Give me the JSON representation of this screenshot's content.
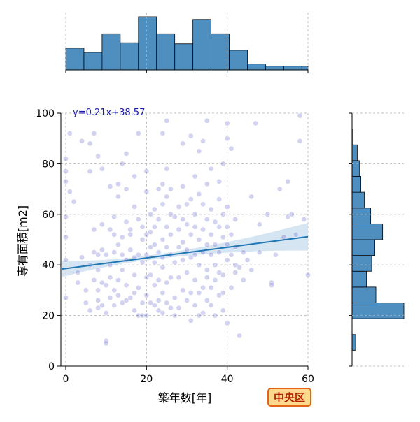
{
  "chart_data": {
    "type": "scatter",
    "xlabel": "築年数[年]",
    "ylabel": "専有面積[m2]",
    "xlim": [
      -1,
      60
    ],
    "ylim": [
      0,
      100
    ],
    "x_ticks": [
      0,
      20,
      40,
      60
    ],
    "y_ticks": [
      0,
      20,
      40,
      60,
      80,
      100
    ],
    "grid": true,
    "regression": {
      "equation": "y=0.21x+38.57",
      "slope": 0.21,
      "intercept": 38.57,
      "x_range": [
        -1,
        60
      ],
      "ci_halfwidth_at_ends": [
        3.2,
        5.5
      ],
      "ci_halfwidth_mid": 0.9,
      "color": "#1f77b4",
      "band_color": "#cfe0f0"
    },
    "badge": "中央区",
    "colors": {
      "point": "#4b4bc8",
      "hist": "#4f8fc0",
      "badge_bg": "#fcd98c",
      "badge_border": "#e2641a",
      "badge_text": "#b22200",
      "label_blue": "#1a1aa8"
    },
    "top_histogram": {
      "bin_edges": [
        0,
        4.5,
        9,
        13.5,
        18,
        22.5,
        27,
        31.5,
        36,
        40.5,
        45,
        49.5,
        54,
        58.5,
        60
      ],
      "relative_heights": [
        0.41,
        0.33,
        0.68,
        0.51,
        1.0,
        0.68,
        0.49,
        0.95,
        0.68,
        0.37,
        0.11,
        0.07,
        0.07,
        0.07
      ]
    },
    "right_histogram": {
      "bin_edges": [
        0,
        6.25,
        12.5,
        18.75,
        25,
        31.25,
        37.5,
        43.75,
        50,
        56.25,
        62.5,
        68.75,
        75,
        81.25,
        87.5,
        93.75,
        100
      ],
      "relative_widths": [
        0.0,
        0.07,
        0.0,
        1.0,
        0.46,
        0.28,
        0.38,
        0.44,
        0.59,
        0.36,
        0.24,
        0.17,
        0.14,
        0.1,
        0.02,
        0.0
      ]
    },
    "points": [
      [
        0,
        27
      ],
      [
        0,
        42
      ],
      [
        0,
        51
      ],
      [
        0,
        59
      ],
      [
        0,
        73
      ],
      [
        0,
        77
      ],
      [
        0,
        82
      ],
      [
        1,
        69
      ],
      [
        1,
        92
      ],
      [
        2,
        65
      ],
      [
        3,
        33
      ],
      [
        3,
        37
      ],
      [
        4,
        89
      ],
      [
        4,
        43
      ],
      [
        5,
        30
      ],
      [
        5,
        25
      ],
      [
        6,
        88
      ],
      [
        6,
        77
      ],
      [
        6,
        40
      ],
      [
        6,
        22
      ],
      [
        7,
        92
      ],
      [
        7,
        54
      ],
      [
        7,
        45
      ],
      [
        7,
        34
      ],
      [
        8,
        23
      ],
      [
        8,
        83
      ],
      [
        8,
        44
      ],
      [
        8,
        38
      ],
      [
        8,
        30
      ],
      [
        8,
        26
      ],
      [
        9,
        33
      ],
      [
        9,
        46
      ],
      [
        9,
        56
      ],
      [
        9,
        78
      ],
      [
        9,
        24
      ],
      [
        10,
        10
      ],
      [
        10,
        9
      ],
      [
        10,
        32
      ],
      [
        10,
        44
      ],
      [
        10,
        21
      ],
      [
        11,
        35
      ],
      [
        11,
        40
      ],
      [
        11,
        54
      ],
      [
        11,
        71
      ],
      [
        11,
        27
      ],
      [
        12,
        45
      ],
      [
        12,
        59
      ],
      [
        12,
        30
      ],
      [
        12,
        52
      ],
      [
        12,
        24
      ],
      [
        13,
        34
      ],
      [
        13,
        48
      ],
      [
        13,
        67
      ],
      [
        13,
        72
      ],
      [
        13,
        28
      ],
      [
        14,
        44
      ],
      [
        14,
        38
      ],
      [
        14,
        51
      ],
      [
        14,
        80
      ],
      [
        14,
        25
      ],
      [
        15,
        84
      ],
      [
        15,
        26
      ],
      [
        15,
        42
      ],
      [
        15,
        70
      ],
      [
        15,
        57
      ],
      [
        15,
        32
      ],
      [
        16,
        27
      ],
      [
        16,
        46
      ],
      [
        16,
        52
      ],
      [
        16,
        54
      ],
      [
        17,
        22
      ],
      [
        17,
        36
      ],
      [
        17,
        43
      ],
      [
        17,
        63
      ],
      [
        17,
        75
      ],
      [
        17,
        29
      ],
      [
        18,
        20
      ],
      [
        18,
        58
      ],
      [
        18,
        92
      ],
      [
        18,
        44
      ],
      [
        18,
        31
      ],
      [
        19,
        20
      ],
      [
        19,
        50
      ],
      [
        19,
        41
      ],
      [
        19,
        55
      ],
      [
        19,
        25
      ],
      [
        20,
        28
      ],
      [
        20,
        35
      ],
      [
        20,
        44
      ],
      [
        20,
        52
      ],
      [
        20,
        69
      ],
      [
        20,
        77
      ],
      [
        20,
        20
      ],
      [
        21,
        25
      ],
      [
        21,
        53
      ],
      [
        21,
        60
      ],
      [
        21,
        36
      ],
      [
        21,
        47
      ],
      [
        22,
        32
      ],
      [
        22,
        41
      ],
      [
        22,
        48
      ],
      [
        22,
        62
      ],
      [
        22,
        24
      ],
      [
        22,
        55
      ],
      [
        23,
        26
      ],
      [
        23,
        34
      ],
      [
        23,
        45
      ],
      [
        23,
        70
      ],
      [
        23,
        58
      ],
      [
        23,
        22
      ],
      [
        24,
        21
      ],
      [
        24,
        29
      ],
      [
        24,
        39
      ],
      [
        24,
        50
      ],
      [
        24,
        64
      ],
      [
        24,
        72
      ],
      [
        24,
        92
      ],
      [
        24,
        43
      ],
      [
        25,
        33
      ],
      [
        25,
        97
      ],
      [
        25,
        47
      ],
      [
        25,
        55
      ],
      [
        25,
        25
      ],
      [
        25,
        67
      ],
      [
        25,
        78
      ],
      [
        26,
        35
      ],
      [
        26,
        23
      ],
      [
        26,
        44
      ],
      [
        26,
        52
      ],
      [
        26,
        60
      ],
      [
        26,
        70
      ],
      [
        27,
        59
      ],
      [
        27,
        41
      ],
      [
        27,
        27
      ],
      [
        27,
        20
      ],
      [
        28,
        35
      ],
      [
        28,
        47
      ],
      [
        28,
        54
      ],
      [
        28,
        63
      ],
      [
        28,
        23
      ],
      [
        29,
        88
      ],
      [
        29,
        49
      ],
      [
        29,
        30
      ],
      [
        29,
        58
      ],
      [
        29,
        71
      ],
      [
        29,
        42
      ],
      [
        30,
        46
      ],
      [
        30,
        56
      ],
      [
        30,
        26
      ],
      [
        30,
        37
      ],
      [
        30,
        64
      ],
      [
        31,
        18
      ],
      [
        31,
        52
      ],
      [
        31,
        66
      ],
      [
        31,
        29
      ],
      [
        31,
        43
      ],
      [
        31,
        91
      ],
      [
        32,
        34
      ],
      [
        32,
        44
      ],
      [
        32,
        55
      ],
      [
        32,
        75
      ],
      [
        32,
        60
      ],
      [
        32,
        24
      ],
      [
        33,
        20
      ],
      [
        33,
        40
      ],
      [
        33,
        50
      ],
      [
        33,
        68
      ],
      [
        33,
        85
      ],
      [
        33,
        29
      ],
      [
        34,
        31
      ],
      [
        34,
        45
      ],
      [
        34,
        54
      ],
      [
        34,
        64
      ],
      [
        34,
        89
      ],
      [
        34,
        21
      ],
      [
        35,
        97
      ],
      [
        35,
        26
      ],
      [
        35,
        38
      ],
      [
        35,
        48
      ],
      [
        35,
        58
      ],
      [
        35,
        72
      ],
      [
        35,
        35
      ],
      [
        36,
        24
      ],
      [
        36,
        44
      ],
      [
        36,
        52
      ],
      [
        36,
        62
      ],
      [
        36,
        78
      ],
      [
        36,
        31
      ],
      [
        37,
        40
      ],
      [
        37,
        57
      ],
      [
        37,
        48
      ],
      [
        37,
        34
      ],
      [
        37,
        20
      ],
      [
        38,
        28
      ],
      [
        38,
        55
      ],
      [
        38,
        66
      ],
      [
        38,
        73
      ],
      [
        38,
        45
      ],
      [
        38,
        37
      ],
      [
        39,
        36
      ],
      [
        39,
        51
      ],
      [
        39,
        60
      ],
      [
        39,
        80
      ],
      [
        39,
        22
      ],
      [
        39,
        29
      ],
      [
        40,
        17
      ],
      [
        40,
        42
      ],
      [
        40,
        48
      ],
      [
        40,
        55
      ],
      [
        40,
        63
      ],
      [
        40,
        90
      ],
      [
        40,
        96
      ],
      [
        41,
        31
      ],
      [
        41,
        86
      ],
      [
        41,
        44
      ],
      [
        41,
        52
      ],
      [
        42,
        37
      ],
      [
        42,
        40
      ],
      [
        42,
        47
      ],
      [
        42,
        58
      ],
      [
        43,
        12
      ],
      [
        43,
        39
      ],
      [
        44,
        34
      ],
      [
        44,
        45
      ],
      [
        45,
        42
      ],
      [
        46,
        67
      ],
      [
        46,
        38
      ],
      [
        47,
        96
      ],
      [
        48,
        45
      ],
      [
        48,
        56
      ],
      [
        50,
        60
      ],
      [
        51,
        33
      ],
      [
        51,
        32
      ],
      [
        52,
        44
      ],
      [
        53,
        70
      ],
      [
        54,
        51
      ],
      [
        55,
        73
      ],
      [
        55,
        59
      ],
      [
        56,
        60
      ],
      [
        57,
        52
      ],
      [
        58,
        99
      ],
      [
        58,
        89
      ],
      [
        59,
        58
      ],
      [
        60,
        36
      ]
    ]
  }
}
